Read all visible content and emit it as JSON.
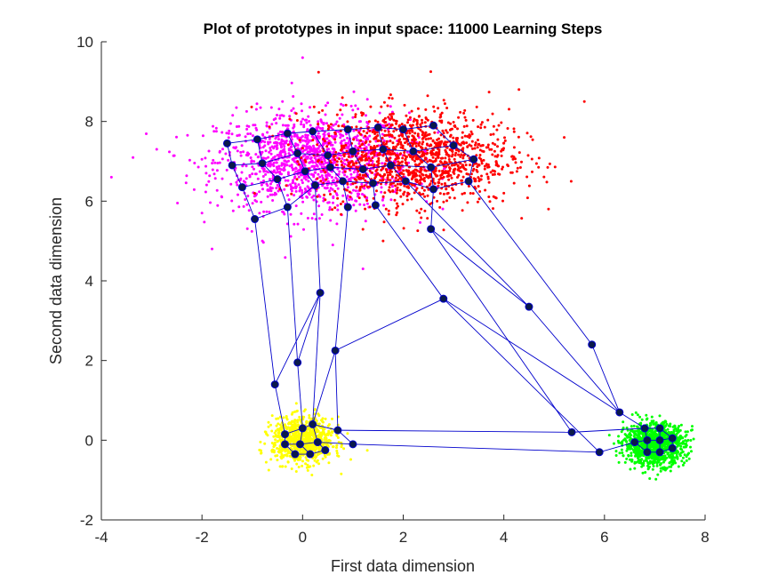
{
  "chart_data": {
    "type": "scatter",
    "title": "Plot of prototypes in input space: 11000 Learning Steps",
    "xlabel": "First data dimension",
    "ylabel": "Second data dimension",
    "xlim": [
      -4,
      8
    ],
    "ylim": [
      -2,
      10
    ],
    "x_ticks": [
      "-4",
      "-2",
      "0",
      "2",
      "4",
      "6",
      "8"
    ],
    "y_ticks": [
      "-2",
      "0",
      "2",
      "4",
      "6",
      "8",
      "10"
    ],
    "grid": false,
    "colors": {
      "data_magenta": "#ff00ff",
      "data_red": "#ff0000",
      "data_yellow": "#ffff00",
      "data_green": "#00ff00",
      "prototype_fill": "#0b1a4a",
      "prototype_edge": "#0000cc",
      "lattice_line": "#0000cc"
    },
    "data_clusters": [
      {
        "name": "magenta",
        "center": [
          0.2,
          7.0
        ],
        "spread": [
          0.95,
          0.6
        ],
        "count": 1300,
        "color": "#ff00ff"
      },
      {
        "name": "red",
        "center": [
          2.2,
          7.1
        ],
        "spread": [
          0.95,
          0.6
        ],
        "count": 1300,
        "color": "#ff0000"
      },
      {
        "name": "yellow",
        "center": [
          0.0,
          0.0
        ],
        "spread": [
          0.3,
          0.28
        ],
        "count": 900,
        "color": "#ffff00"
      },
      {
        "name": "green",
        "center": [
          7.0,
          -0.1
        ],
        "spread": [
          0.3,
          0.26
        ],
        "count": 1100,
        "color": "#00ff00"
      }
    ],
    "outliers": [
      [
        -3.8,
        6.6
      ],
      [
        -2.9,
        7.3
      ],
      [
        0.0,
        9.6
      ],
      [
        1.2,
        4.3
      ],
      [
        5.2,
        7.6
      ],
      [
        5.6,
        8.5
      ],
      [
        4.3,
        8.8
      ],
      [
        -1.8,
        4.8
      ],
      [
        -0.8,
        5.0
      ],
      [
        4.0,
        6.2
      ],
      [
        3.9,
        7.9
      ],
      [
        -2.0,
        5.7
      ],
      [
        1.6,
        5.0
      ],
      [
        0.6,
        4.9
      ]
    ],
    "prototypes": [
      [
        -1.5,
        7.45
      ],
      [
        -0.9,
        7.55
      ],
      [
        -0.3,
        7.7
      ],
      [
        0.2,
        7.75
      ],
      [
        0.9,
        7.8
      ],
      [
        1.5,
        7.85
      ],
      [
        2.0,
        7.8
      ],
      [
        2.6,
        7.9
      ],
      [
        -1.4,
        6.9
      ],
      [
        -0.8,
        6.95
      ],
      [
        -0.1,
        7.2
      ],
      [
        0.5,
        7.15
      ],
      [
        1.0,
        7.25
      ],
      [
        1.6,
        7.3
      ],
      [
        2.2,
        7.25
      ],
      [
        3.0,
        7.4
      ],
      [
        -1.2,
        6.35
      ],
      [
        -0.5,
        6.55
      ],
      [
        0.05,
        6.75
      ],
      [
        0.55,
        6.85
      ],
      [
        1.2,
        6.8
      ],
      [
        1.75,
        6.9
      ],
      [
        2.55,
        6.85
      ],
      [
        3.4,
        7.05
      ],
      [
        -0.95,
        5.55
      ],
      [
        -0.3,
        5.85
      ],
      [
        0.25,
        6.4
      ],
      [
        0.8,
        6.5
      ],
      [
        1.4,
        6.45
      ],
      [
        2.05,
        6.5
      ],
      [
        2.6,
        6.3
      ],
      [
        3.3,
        6.5
      ],
      [
        0.9,
        5.85
      ],
      [
        1.45,
        5.9
      ],
      [
        2.55,
        5.3
      ],
      [
        0.35,
        3.7
      ],
      [
        2.8,
        3.55
      ],
      [
        4.5,
        3.35
      ],
      [
        5.75,
        2.4
      ],
      [
        -0.55,
        1.4
      ],
      [
        -0.1,
        1.95
      ],
      [
        0.65,
        2.25
      ],
      [
        6.3,
        0.7
      ],
      [
        -0.35,
        0.15
      ],
      [
        0.0,
        0.3
      ],
      [
        0.2,
        0.4
      ],
      [
        0.7,
        0.25
      ],
      [
        -0.35,
        -0.1
      ],
      [
        -0.05,
        -0.1
      ],
      [
        0.3,
        -0.05
      ],
      [
        1.0,
        -0.1
      ],
      [
        -0.15,
        -0.35
      ],
      [
        0.15,
        -0.35
      ],
      [
        0.45,
        -0.25
      ],
      [
        5.35,
        0.2
      ],
      [
        5.9,
        -0.3
      ],
      [
        6.8,
        0.3
      ],
      [
        7.1,
        0.3
      ],
      [
        6.85,
        0.0
      ],
      [
        7.1,
        0.0
      ],
      [
        7.35,
        0.05
      ],
      [
        6.6,
        -0.05
      ],
      [
        6.85,
        -0.3
      ],
      [
        7.1,
        -0.3
      ],
      [
        7.35,
        -0.2
      ]
    ],
    "edges": [
      [
        0,
        1
      ],
      [
        1,
        2
      ],
      [
        2,
        3
      ],
      [
        3,
        4
      ],
      [
        4,
        5
      ],
      [
        5,
        6
      ],
      [
        6,
        7
      ],
      [
        8,
        9
      ],
      [
        9,
        10
      ],
      [
        10,
        11
      ],
      [
        11,
        12
      ],
      [
        12,
        13
      ],
      [
        13,
        14
      ],
      [
        14,
        15
      ],
      [
        16,
        17
      ],
      [
        17,
        18
      ],
      [
        18,
        19
      ],
      [
        19,
        20
      ],
      [
        20,
        21
      ],
      [
        21,
        22
      ],
      [
        22,
        23
      ],
      [
        24,
        25
      ],
      [
        25,
        26
      ],
      [
        26,
        27
      ],
      [
        27,
        28
      ],
      [
        28,
        29
      ],
      [
        29,
        30
      ],
      [
        30,
        31
      ],
      [
        0,
        8
      ],
      [
        8,
        16
      ],
      [
        16,
        24
      ],
      [
        1,
        9
      ],
      [
        9,
        17
      ],
      [
        17,
        25
      ],
      [
        2,
        10
      ],
      [
        10,
        18
      ],
      [
        18,
        26
      ],
      [
        3,
        11
      ],
      [
        11,
        19
      ],
      [
        19,
        27
      ],
      [
        4,
        12
      ],
      [
        12,
        20
      ],
      [
        20,
        28
      ],
      [
        5,
        13
      ],
      [
        13,
        21
      ],
      [
        21,
        29
      ],
      [
        6,
        14
      ],
      [
        14,
        22
      ],
      [
        22,
        30
      ],
      [
        7,
        15
      ],
      [
        15,
        23
      ],
      [
        23,
        31
      ],
      [
        27,
        32
      ],
      [
        28,
        33
      ],
      [
        30,
        34
      ],
      [
        24,
        39
      ],
      [
        25,
        40
      ],
      [
        26,
        35
      ],
      [
        35,
        40
      ],
      [
        35,
        39
      ],
      [
        32,
        41
      ],
      [
        41,
        36
      ],
      [
        36,
        42
      ],
      [
        33,
        36
      ],
      [
        34,
        37
      ],
      [
        37,
        42
      ],
      [
        31,
        38
      ],
      [
        38,
        42
      ],
      [
        29,
        37
      ],
      [
        39,
        43
      ],
      [
        40,
        44
      ],
      [
        41,
        45
      ],
      [
        41,
        46
      ],
      [
        35,
        45
      ],
      [
        43,
        44
      ],
      [
        44,
        45
      ],
      [
        45,
        46
      ],
      [
        47,
        48
      ],
      [
        48,
        49
      ],
      [
        49,
        50
      ],
      [
        51,
        52
      ],
      [
        52,
        53
      ],
      [
        43,
        47
      ],
      [
        44,
        48
      ],
      [
        45,
        49
      ],
      [
        46,
        50
      ],
      [
        47,
        51
      ],
      [
        48,
        52
      ],
      [
        49,
        53
      ],
      [
        46,
        54
      ],
      [
        50,
        55
      ],
      [
        54,
        56
      ],
      [
        55,
        61
      ],
      [
        42,
        56
      ],
      [
        36,
        55
      ],
      [
        34,
        54
      ],
      [
        56,
        57
      ],
      [
        58,
        59
      ],
      [
        59,
        60
      ],
      [
        61,
        62
      ],
      [
        62,
        63
      ],
      [
        63,
        64
      ],
      [
        56,
        58
      ],
      [
        57,
        59
      ],
      [
        58,
        62
      ],
      [
        59,
        63
      ],
      [
        60,
        64
      ],
      [
        61,
        58
      ],
      [
        57,
        60
      ]
    ]
  }
}
